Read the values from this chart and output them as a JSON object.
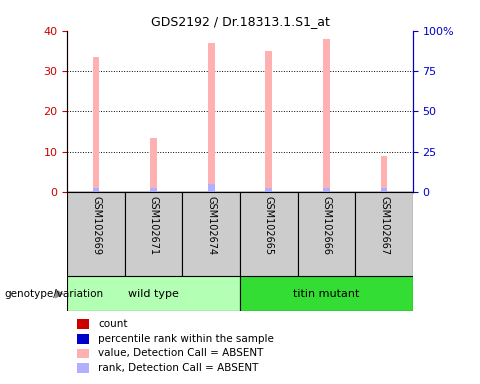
{
  "title": "GDS2192 / Dr.18313.1.S1_at",
  "samples": [
    "GSM102669",
    "GSM102671",
    "GSM102674",
    "GSM102665",
    "GSM102666",
    "GSM102667"
  ],
  "group_names": [
    "wild type",
    "titin mutant"
  ],
  "group_colors": [
    "#b3ffb3",
    "#33dd33"
  ],
  "group_sizes": [
    3,
    3
  ],
  "absent_value": [
    33.5,
    13.5,
    37.0,
    35.0,
    38.0,
    9.0
  ],
  "absent_rank_pct": [
    2.5,
    2.5,
    5.0,
    2.5,
    2.5,
    2.5
  ],
  "ylim_left": [
    0,
    40
  ],
  "ylim_right": [
    0,
    100
  ],
  "left_ticks": [
    0,
    10,
    20,
    30,
    40
  ],
  "right_ticks": [
    0,
    25,
    50,
    75,
    100
  ],
  "left_color": "#cc0000",
  "right_color": "#0000cc",
  "bar_color_absent": "#ffb0b0",
  "bar_color_rank_absent": "#b0b0ff",
  "bar_color_count": "#cc0000",
  "bar_color_rank": "#0000cc",
  "legend_items": [
    {
      "label": "count",
      "color": "#cc0000"
    },
    {
      "label": "percentile rank within the sample",
      "color": "#0000cc"
    },
    {
      "label": "value, Detection Call = ABSENT",
      "color": "#ffb0b0"
    },
    {
      "label": "rank, Detection Call = ABSENT",
      "color": "#b0b0ff"
    }
  ],
  "group_label": "genotype/variation",
  "sample_box_color": "#cccccc",
  "bar_width": 0.12
}
